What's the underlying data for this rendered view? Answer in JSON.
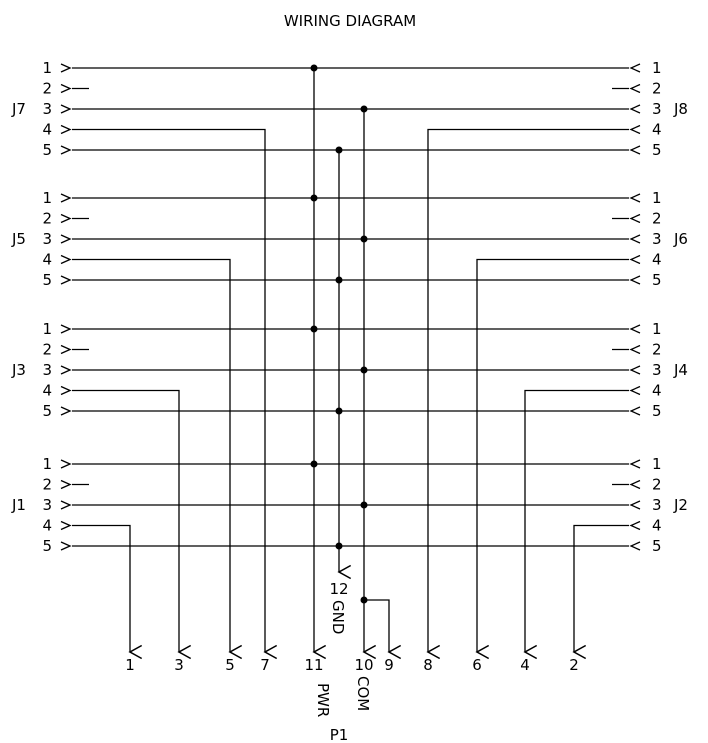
{
  "title": "WIRING DIAGRAM",
  "pins": [
    "1",
    "2",
    "3",
    "4",
    "5"
  ],
  "connectors": {
    "left": [
      "J7",
      "J5",
      "J3",
      "J1"
    ],
    "right": [
      "J8",
      "J6",
      "J4",
      "J2"
    ]
  },
  "output_connector": "P1",
  "output_pins": [
    "1",
    "3",
    "5",
    "7",
    "11",
    "10",
    "9",
    "8",
    "6",
    "4",
    "2"
  ],
  "signals": {
    "pwr": "PWR",
    "com": "COM",
    "gnd": "GND",
    "gnd_pin": "12"
  }
}
